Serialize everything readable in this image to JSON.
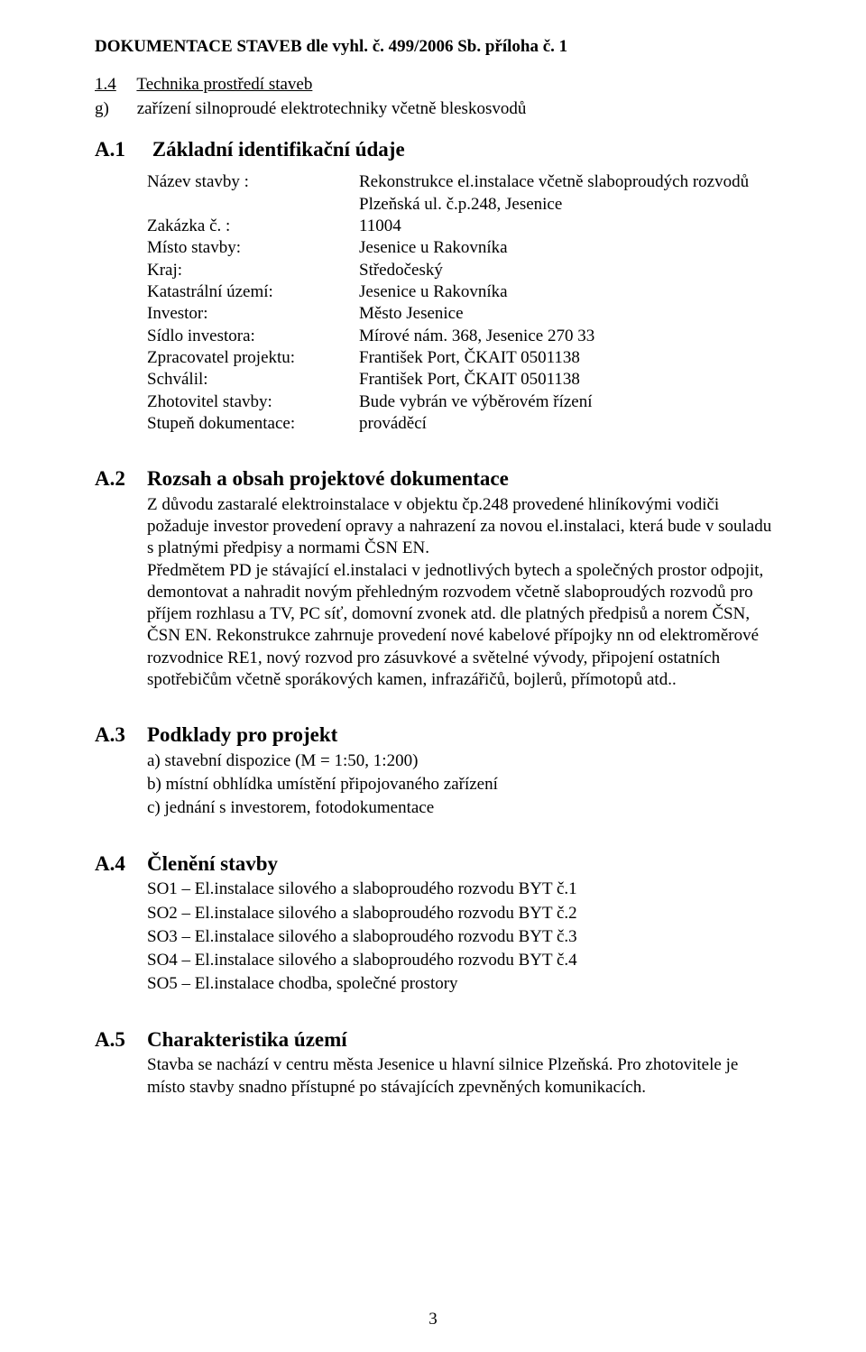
{
  "colors": {
    "text": "#000000",
    "background": "#ffffff"
  },
  "typography": {
    "family": "Times New Roman",
    "body_pt": 14,
    "heading_pt": 17
  },
  "title": "DOKUMENTACE STAVEB dle vyhl. č. 499/2006 Sb. příloha č. 1",
  "s14": {
    "num": "1.4",
    "text": "Technika prostředí staveb",
    "g": "g)",
    "gtext": "zařízení silnoproudé elektrotechniky včetně bleskosvodů"
  },
  "A1": {
    "num": "A.1",
    "title": "Základní identifikační údaje",
    "rows": {
      "r1k": "Název stavby :",
      "r1v1": "Rekonstrukce el.instalace včetně slaboproudých rozvodů",
      "r1v2": "Plzeňská ul. č.p.248, Jesenice",
      "r2k": "Zakázka č. :",
      "r2v": "11004",
      "r3k": "Místo stavby:",
      "r3v": "Jesenice u Rakovníka",
      "r4k": "Kraj:",
      "r4v": "Středočeský",
      "r5k": "Katastrální území:",
      "r5v": "Jesenice u Rakovníka",
      "r6k": "Investor:",
      "r6v": "Město Jesenice",
      "r7k": "Sídlo investora:",
      "r7v": "Mírové nám. 368, Jesenice 270 33",
      "r8k": "Zpracovatel projektu:",
      "r8v": "František Port, ČKAIT  0501138",
      "r9k": "Schválil:",
      "r9v": "František Port, ČKAIT  0501138",
      "r10k": "Zhotovitel stavby:",
      "r10v": "Bude vybrán ve výběrovém řízení",
      "r11k": "Stupeň dokumentace:",
      "r11v": "prováděcí"
    }
  },
  "A2": {
    "num": "A.2",
    "title": "Rozsah a obsah projektové dokumentace",
    "body": "Z důvodu zastaralé elektroinstalace v objektu čp.248 provedené hliníkovými vodiči požaduje investor provedení opravy a nahrazení za novou el.instalaci, která bude v souladu s platnými předpisy a normami ČSN EN.\nPředmětem PD je stávající el.instalaci v jednotlivých bytech a společných prostor odpojit, demontovat a nahradit novým přehledným rozvodem včetně slaboproudých rozvodů pro příjem rozhlasu a TV, PC síť, domovní zvonek atd. dle platných předpisů a norem ČSN, ČSN EN. Rekonstrukce zahrnuje provedení nové kabelové přípojky nn od elektroměrové rozvodnice RE1, nový rozvod pro zásuvkové a světelné vývody, připojení ostatních spotřebičům včetně sporákových kamen, infrazářičů, bojlerů, přímotopů atd.."
  },
  "A3": {
    "num": "A.3",
    "title": "Podklady pro projekt",
    "a": "a) stavební dispozice (M = 1:50, 1:200)",
    "b": "b) místní obhlídka umístění připojovaného zařízení",
    "c": "c) jednání s investorem, fotodokumentace"
  },
  "A4": {
    "num": "A.4",
    "title": "Členění stavby",
    "l1": "SO1 – El.instalace silového a slaboproudého rozvodu BYT č.1",
    "l2": "SO2 – El.instalace silového a slaboproudého rozvodu BYT č.2",
    "l3": "SO3 – El.instalace silového a slaboproudého rozvodu BYT č.3",
    "l4": "SO4 – El.instalace silového a slaboproudého rozvodu BYT č.4",
    "l5": "SO5 – El.instalace chodba, společné prostory"
  },
  "A5": {
    "num": "A.5",
    "title": "Charakteristika území",
    "body": "Stavba se nachází v centru města Jesenice u hlavní silnice Plzeňská. Pro zhotovitele je místo stavby snadno přístupné po stávajících zpevněných komunikacích."
  },
  "pagenum": "3"
}
